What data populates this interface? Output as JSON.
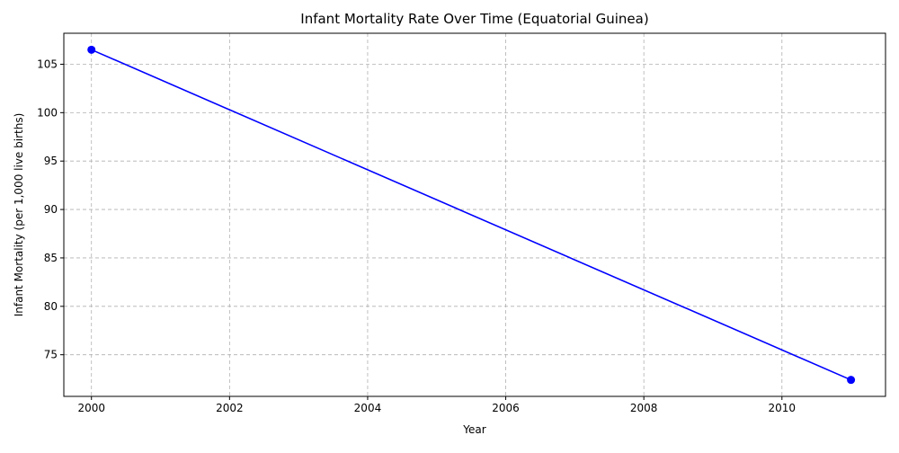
{
  "chart_data": {
    "type": "line",
    "title": "Infant Mortality Rate Over Time (Equatorial Guinea)",
    "xlabel": "Year",
    "ylabel": "Infant Mortality (per 1,000 live births)",
    "x": [
      2000,
      2011
    ],
    "series": [
      {
        "values": [
          106.5,
          72.4
        ],
        "color": "#0000ff",
        "marker": "circle"
      }
    ],
    "xlim": [
      1999.6,
      2011.5
    ],
    "ylim": [
      70.7,
      108.2
    ],
    "x_ticks": [
      2000,
      2002,
      2004,
      2006,
      2008,
      2010
    ],
    "y_ticks": [
      75,
      80,
      85,
      90,
      95,
      100,
      105
    ],
    "grid": true,
    "grid_style": "dashed"
  }
}
